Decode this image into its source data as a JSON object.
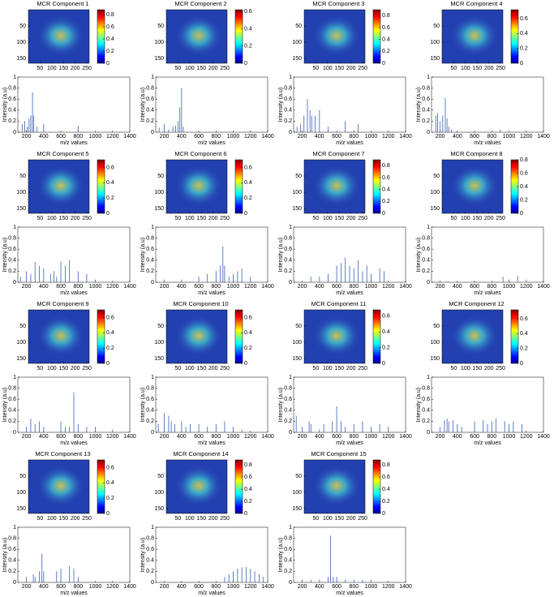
{
  "chart_data": [
    {
      "type": "heatmap",
      "title": "MCR Component 1",
      "xlim": [
        0,
        260
      ],
      "ylim": [
        0,
        165
      ],
      "xticks": [
        50,
        100,
        150,
        200,
        250
      ],
      "yticks": [
        50,
        100,
        150
      ],
      "clim": [
        0,
        0.88
      ],
      "cticks": [
        0,
        0.2,
        0.4,
        0.6,
        0.8
      ]
    },
    {
      "type": "stem",
      "xlabel": "m/z values",
      "ylabel": "Intensity (a.u)",
      "color": "#3a5fb5",
      "xlim": [
        100,
        1400
      ],
      "ylim": [
        0,
        1
      ],
      "xticks": [
        200,
        400,
        600,
        800,
        1000,
        1200,
        1400
      ],
      "yticks": [
        0,
        0.2,
        0.4,
        0.6,
        0.8,
        1
      ],
      "x": [
        150,
        180,
        210,
        230,
        250,
        270,
        285,
        320,
        400,
        800
      ],
      "values": [
        0.15,
        0.2,
        0.1,
        0.25,
        0.3,
        0.72,
        0.3,
        0.1,
        0.15,
        0.12
      ]
    },
    {
      "type": "heatmap",
      "title": "MCR Component 2",
      "xlim": [
        0,
        260
      ],
      "ylim": [
        0,
        165
      ],
      "xticks": [
        50,
        100,
        150,
        200,
        250
      ],
      "yticks": [
        50,
        100,
        150
      ],
      "clim": [
        0,
        0.62
      ],
      "cticks": [
        0,
        0.2,
        0.4,
        0.6
      ]
    },
    {
      "type": "stem",
      "xlabel": "m/z values",
      "ylabel": "Intensity (a.u)",
      "color": "#3a5fb5",
      "xlim": [
        100,
        1400
      ],
      "ylim": [
        0,
        1
      ],
      "xticks": [
        200,
        400,
        600,
        800,
        1000,
        1200,
        1400
      ],
      "yticks": [
        0,
        0.2,
        0.4,
        0.6,
        0.8,
        1
      ],
      "x": [
        140,
        200,
        250,
        300,
        330,
        360,
        380,
        400,
        420
      ],
      "values": [
        0.08,
        0.15,
        0.05,
        0.1,
        0.12,
        0.2,
        0.45,
        0.8,
        0.1
      ]
    },
    {
      "type": "heatmap",
      "title": "MCR Component 3",
      "xlim": [
        0,
        260
      ],
      "ylim": [
        0,
        165
      ],
      "xticks": [
        50,
        100,
        150,
        200,
        250
      ],
      "yticks": [
        50,
        100,
        150
      ],
      "clim": [
        0,
        0.9
      ],
      "cticks": [
        0,
        0.2,
        0.4,
        0.6,
        0.8
      ]
    },
    {
      "type": "stem",
      "xlabel": "m/z values",
      "ylabel": "Intensity (a.u)",
      "color": "#3a5fb5",
      "xlim": [
        100,
        1400
      ],
      "ylim": [
        0,
        1
      ],
      "xticks": [
        200,
        400,
        600,
        800,
        1000,
        1200,
        1400
      ],
      "yticks": [
        0,
        0.2,
        0.4,
        0.6,
        0.8,
        1
      ],
      "x": [
        140,
        180,
        220,
        260,
        290,
        310,
        350,
        400,
        500,
        700,
        850
      ],
      "values": [
        0.1,
        0.15,
        0.3,
        0.6,
        0.4,
        0.3,
        0.3,
        0.4,
        0.1,
        0.2,
        0.15
      ]
    },
    {
      "type": "heatmap",
      "title": "MCR Component 4",
      "xlim": [
        0,
        260
      ],
      "ylim": [
        0,
        165
      ],
      "xticks": [
        50,
        100,
        150,
        200,
        250
      ],
      "yticks": [
        50,
        100,
        150
      ],
      "clim": [
        0,
        0.72
      ],
      "cticks": [
        0,
        0.2,
        0.4,
        0.6
      ]
    },
    {
      "type": "stem",
      "xlabel": "m/z values",
      "ylabel": "Intensity (a.u)",
      "color": "#3a5fb5",
      "xlim": [
        100,
        1400
      ],
      "ylim": [
        0,
        1
      ],
      "xticks": [
        200,
        400,
        600,
        800,
        1000,
        1200,
        1400
      ],
      "yticks": [
        0,
        0.2,
        0.4,
        0.6,
        0.8,
        1
      ],
      "x": [
        150,
        170,
        200,
        230,
        260,
        280,
        300,
        330,
        900
      ],
      "values": [
        0.3,
        0.35,
        0.2,
        0.3,
        0.62,
        0.25,
        0.1,
        0.05,
        0.05
      ]
    },
    {
      "type": "heatmap",
      "title": "MCR Component 5",
      "xlim": [
        0,
        260
      ],
      "ylim": [
        0,
        165
      ],
      "xticks": [
        50,
        100,
        150,
        200,
        250
      ],
      "yticks": [
        50,
        100,
        150
      ],
      "clim": [
        0,
        0.7
      ],
      "cticks": [
        0,
        0.2,
        0.4,
        0.6
      ]
    },
    {
      "type": "stem",
      "xlabel": "m/z values",
      "ylabel": "Intensity (a.u)",
      "color": "#3a5fb5",
      "xlim": [
        100,
        1400
      ],
      "ylim": [
        0,
        1
      ],
      "xticks": [
        200,
        400,
        600,
        800,
        1000,
        1200,
        1400
      ],
      "yticks": [
        0,
        0.2,
        0.4,
        0.6,
        0.8,
        1
      ],
      "x": [
        130,
        200,
        250,
        300,
        350,
        400,
        480,
        520,
        550,
        600,
        650,
        700,
        800,
        900,
        1000
      ],
      "values": [
        0.1,
        0.2,
        0.15,
        0.37,
        0.3,
        0.25,
        0.15,
        0.2,
        0.1,
        0.38,
        0.3,
        0.4,
        0.2,
        0.15,
        0.05
      ]
    },
    {
      "type": "heatmap",
      "title": "MCR Component 6",
      "xlim": [
        0,
        260
      ],
      "ylim": [
        0,
        165
      ],
      "xticks": [
        50,
        100,
        150,
        200,
        250
      ],
      "yticks": [
        50,
        100,
        150
      ],
      "clim": [
        0,
        0.7
      ],
      "cticks": [
        0,
        0.2,
        0.4,
        0.6
      ]
    },
    {
      "type": "stem",
      "xlabel": "m/z values",
      "ylabel": "Intensity (a.u)",
      "color": "#3a5fb5",
      "xlim": [
        100,
        1400
      ],
      "ylim": [
        0,
        1
      ],
      "xticks": [
        200,
        400,
        600,
        800,
        1000,
        1200,
        1400
      ],
      "yticks": [
        0,
        0.2,
        0.4,
        0.6,
        0.8,
        1
      ],
      "x": [
        200,
        400,
        600,
        700,
        800,
        850,
        880,
        900,
        950,
        1000,
        1050,
        1100,
        1200
      ],
      "values": [
        0.05,
        0.05,
        0.1,
        0.15,
        0.2,
        0.3,
        0.65,
        0.3,
        0.1,
        0.15,
        0.2,
        0.25,
        0.1
      ]
    },
    {
      "type": "heatmap",
      "title": "MCR Component 7",
      "xlim": [
        0,
        260
      ],
      "ylim": [
        0,
        165
      ],
      "xticks": [
        50,
        100,
        150,
        200,
        250
      ],
      "yticks": [
        50,
        100,
        150
      ],
      "clim": [
        0,
        0.9
      ],
      "cticks": [
        0,
        0.2,
        0.4,
        0.6,
        0.8
      ]
    },
    {
      "type": "stem",
      "xlabel": "m/z values",
      "ylabel": "Intensity (a.u)",
      "color": "#3a5fb5",
      "xlim": [
        100,
        1400
      ],
      "ylim": [
        0,
        1
      ],
      "xticks": [
        200,
        400,
        600,
        800,
        1000,
        1200,
        1400
      ],
      "yticks": [
        0,
        0.2,
        0.4,
        0.6,
        0.8,
        1
      ],
      "x": [
        300,
        400,
        500,
        600,
        650,
        700,
        750,
        800,
        850,
        900,
        950,
        1000,
        1100,
        1150
      ],
      "values": [
        0.1,
        0.1,
        0.15,
        0.3,
        0.35,
        0.45,
        0.3,
        0.25,
        0.4,
        0.2,
        0.3,
        0.15,
        0.25,
        0.2
      ]
    },
    {
      "type": "heatmap",
      "title": "MCR Component 8",
      "xlim": [
        0,
        260
      ],
      "ylim": [
        0,
        165
      ],
      "xticks": [
        50,
        100,
        150,
        200,
        250
      ],
      "yticks": [
        50,
        100,
        150
      ],
      "clim": [
        0,
        0.8
      ],
      "cticks": [
        0,
        0.2,
        0.4,
        0.6,
        0.8
      ]
    },
    {
      "type": "stem",
      "xlabel": "m/z values",
      "ylabel": "Intensity (a.u)",
      "color": "#3a5fb5",
      "xlim": [
        100,
        1400
      ],
      "ylim": [
        0,
        1
      ],
      "xticks": [
        200,
        400,
        600,
        800,
        1000,
        1200,
        1400
      ],
      "yticks": [
        0,
        0.2,
        0.4,
        0.6,
        0.8,
        1
      ],
      "x": [
        200,
        400,
        600,
        800,
        930,
        1000,
        1100,
        1200
      ],
      "values": [
        0.03,
        0.03,
        0.03,
        0.03,
        0.1,
        0.05,
        0.12,
        0.05
      ]
    },
    {
      "type": "heatmap",
      "title": "MCR Component 9",
      "xlim": [
        0,
        260
      ],
      "ylim": [
        0,
        165
      ],
      "xticks": [
        50,
        100,
        150,
        200,
        250
      ],
      "yticks": [
        50,
        100,
        150
      ],
      "clim": [
        0,
        0.7
      ],
      "cticks": [
        0,
        0.2,
        0.4,
        0.6
      ]
    },
    {
      "type": "stem",
      "xlabel": "m/z values",
      "ylabel": "Intensity (a.u)",
      "color": "#3a5fb5",
      "xlim": [
        100,
        1400
      ],
      "ylim": [
        0,
        1
      ],
      "xticks": [
        200,
        400,
        600,
        800,
        1000,
        1200,
        1400
      ],
      "yticks": [
        0,
        0.2,
        0.4,
        0.6,
        0.8,
        1
      ],
      "x": [
        200,
        250,
        300,
        350,
        400,
        600,
        650,
        700,
        750,
        800,
        900,
        1000,
        1200
      ],
      "values": [
        0.1,
        0.25,
        0.15,
        0.2,
        0.1,
        0.2,
        0.1,
        0.1,
        0.72,
        0.15,
        0.1,
        0.1,
        0.05
      ]
    },
    {
      "type": "heatmap",
      "title": "MCR Component 10",
      "xlim": [
        0,
        260
      ],
      "ylim": [
        0,
        165
      ],
      "xticks": [
        50,
        100,
        150,
        200,
        250
      ],
      "yticks": [
        50,
        100,
        150
      ],
      "clim": [
        0,
        0.7
      ],
      "cticks": [
        0,
        0.2,
        0.4,
        0.6
      ]
    },
    {
      "type": "stem",
      "xlabel": "m/z values",
      "ylabel": "Intensity (a.u)",
      "color": "#3a5fb5",
      "xlim": [
        100,
        1400
      ],
      "ylim": [
        0,
        1
      ],
      "xticks": [
        200,
        400,
        600,
        800,
        1000,
        1200,
        1400
      ],
      "yticks": [
        0,
        0.2,
        0.4,
        0.6,
        0.8,
        1
      ],
      "x": [
        130,
        200,
        250,
        280,
        320,
        400,
        450,
        500,
        600,
        700,
        800,
        900,
        1000,
        1100
      ],
      "values": [
        0.15,
        0.35,
        0.3,
        0.2,
        0.15,
        0.2,
        0.1,
        0.15,
        0.15,
        0.1,
        0.15,
        0.2,
        0.1,
        0.05
      ]
    },
    {
      "type": "heatmap",
      "title": "MCR Component 11",
      "xlim": [
        0,
        260
      ],
      "ylim": [
        0,
        165
      ],
      "xticks": [
        50,
        100,
        150,
        200,
        250
      ],
      "yticks": [
        50,
        100,
        150
      ],
      "clim": [
        0,
        0.68
      ],
      "cticks": [
        0,
        0.2,
        0.4,
        0.6
      ]
    },
    {
      "type": "stem",
      "xlabel": "m/z values",
      "ylabel": "Intensity (a.u)",
      "color": "#3a5fb5",
      "xlim": [
        100,
        1400
      ],
      "ylim": [
        0,
        1
      ],
      "xticks": [
        200,
        400,
        600,
        800,
        1000,
        1200,
        1400
      ],
      "yticks": [
        0,
        0.2,
        0.4,
        0.6,
        0.8,
        1
      ],
      "x": [
        130,
        200,
        280,
        300,
        400,
        450,
        550,
        600,
        650,
        700,
        800,
        900,
        1000,
        1100,
        1200
      ],
      "values": [
        0.3,
        0.1,
        0.2,
        0.15,
        0.05,
        0.15,
        0.2,
        0.47,
        0.2,
        0.1,
        0.15,
        0.2,
        0.1,
        0.15,
        0.1
      ]
    },
    {
      "type": "heatmap",
      "title": "MCR Component 12",
      "xlim": [
        0,
        260
      ],
      "ylim": [
        0,
        165
      ],
      "xticks": [
        50,
        100,
        150,
        200,
        250
      ],
      "yticks": [
        50,
        100,
        150
      ],
      "clim": [
        0,
        0.72
      ],
      "cticks": [
        0,
        0.2,
        0.4,
        0.6
      ]
    },
    {
      "type": "stem",
      "xlabel": "m/z values",
      "ylabel": "Intensity (a.u)",
      "color": "#3a5fb5",
      "xlim": [
        100,
        1400
      ],
      "ylim": [
        0,
        1
      ],
      "xticks": [
        200,
        400,
        600,
        800,
        1000,
        1200,
        1400
      ],
      "yticks": [
        0,
        0.2,
        0.4,
        0.6,
        0.8,
        1
      ],
      "x": [
        200,
        250,
        280,
        300,
        350,
        400,
        450,
        600,
        700,
        750,
        800,
        850,
        950,
        1000,
        1050,
        1150
      ],
      "values": [
        0.1,
        0.22,
        0.25,
        0.2,
        0.22,
        0.15,
        0.1,
        0.2,
        0.22,
        0.15,
        0.2,
        0.25,
        0.2,
        0.15,
        0.2,
        0.15
      ]
    },
    {
      "type": "heatmap",
      "title": "MCR Component 13",
      "xlim": [
        0,
        260
      ],
      "ylim": [
        0,
        165
      ],
      "xticks": [
        50,
        100,
        150,
        200,
        250
      ],
      "yticks": [
        50,
        100,
        150
      ],
      "clim": [
        0,
        0.7
      ],
      "cticks": [
        0,
        0.2,
        0.4,
        0.6
      ]
    },
    {
      "type": "stem",
      "xlabel": "m/z values",
      "ylabel": "Intensity (a.u)",
      "color": "#3a5fb5",
      "xlim": [
        100,
        1400
      ],
      "ylim": [
        0,
        1
      ],
      "xticks": [
        200,
        400,
        600,
        800,
        1000,
        1200,
        1400
      ],
      "yticks": [
        0,
        0.2,
        0.4,
        0.6,
        0.8,
        1
      ],
      "x": [
        200,
        280,
        300,
        350,
        380,
        400,
        550,
        600,
        700,
        750,
        800
      ],
      "values": [
        0.1,
        0.15,
        0.1,
        0.2,
        0.52,
        0.2,
        0.2,
        0.25,
        0.3,
        0.25,
        0.1
      ]
    },
    {
      "type": "heatmap",
      "title": "MCR Component 14",
      "xlim": [
        0,
        260
      ],
      "ylim": [
        0,
        165
      ],
      "xticks": [
        50,
        100,
        150,
        200,
        250
      ],
      "yticks": [
        50,
        100,
        150
      ],
      "clim": [
        0,
        0.88
      ],
      "cticks": [
        0,
        0.2,
        0.4,
        0.6,
        0.8
      ]
    },
    {
      "type": "stem",
      "xlabel": "m/z values",
      "ylabel": "Intensity (a.u)",
      "color": "#3a5fb5",
      "xlim": [
        100,
        1400
      ],
      "ylim": [
        0,
        1
      ],
      "xticks": [
        200,
        400,
        600,
        800,
        1000,
        1200,
        1400
      ],
      "yticks": [
        0,
        0.2,
        0.4,
        0.6,
        0.8,
        1
      ],
      "x": [
        900,
        950,
        1000,
        1050,
        1100,
        1150,
        1200,
        1250,
        1300,
        1350
      ],
      "values": [
        0.1,
        0.15,
        0.2,
        0.25,
        0.27,
        0.28,
        0.25,
        0.2,
        0.15,
        0.1
      ]
    },
    {
      "type": "heatmap",
      "title": "MCR Component 15",
      "xlim": [
        0,
        260
      ],
      "ylim": [
        0,
        165
      ],
      "xticks": [
        50,
        100,
        150,
        200,
        250
      ],
      "yticks": [
        50,
        100,
        150
      ],
      "clim": [
        0,
        0.88
      ],
      "cticks": [
        0,
        0.2,
        0.4,
        0.6,
        0.8
      ]
    },
    {
      "type": "stem",
      "xlabel": "m/z values",
      "ylabel": "Intensity (a.u)",
      "color": "#3a5fb5",
      "xlim": [
        100,
        1400
      ],
      "ylim": [
        0,
        1
      ],
      "xticks": [
        200,
        400,
        600,
        800,
        1000,
        1200,
        1400
      ],
      "yticks": [
        0,
        0.2,
        0.4,
        0.6,
        0.8,
        1
      ],
      "x": [
        200,
        300,
        400,
        500,
        530,
        560,
        600,
        700,
        800,
        900,
        1000
      ],
      "values": [
        0.05,
        0.05,
        0.05,
        0.1,
        0.85,
        0.1,
        0.1,
        0.05,
        0.05,
        0.05,
        0.05
      ]
    }
  ]
}
